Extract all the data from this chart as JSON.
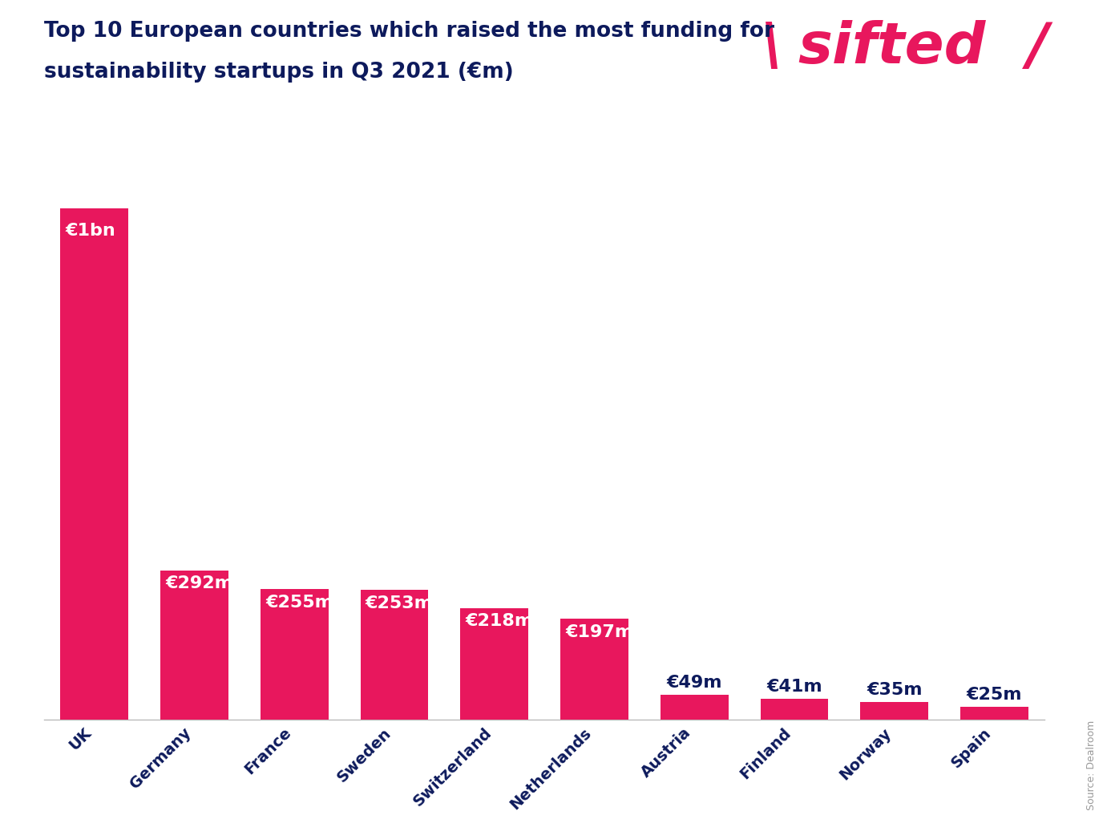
{
  "title_line1": "Top 10 European countries which raised the most funding for",
  "title_line2": "sustainability startups in Q3 2021 (€m)",
  "source": "Source: Dealroom",
  "categories": [
    "UK",
    "Germany",
    "France",
    "Sweden",
    "Switzerland",
    "Netherlands",
    "Austria",
    "Finland",
    "Norway",
    "Spain"
  ],
  "values": [
    1000,
    292,
    255,
    253,
    218,
    197,
    49,
    41,
    35,
    25
  ],
  "labels": [
    "€1bn",
    "€292m",
    "€255m",
    "€253m",
    "€218m",
    "€197m",
    "€49m",
    "€41m",
    "€35m",
    "€25m"
  ],
  "label_inside": [
    true,
    true,
    true,
    true,
    true,
    true,
    false,
    false,
    false,
    false
  ],
  "label_color_inside": "#ffffff",
  "label_color_outside": "#0d1a5c",
  "bar_color": "#e8175d",
  "background_color": "#ffffff",
  "grid_color": "#d0d0d0",
  "title_color": "#0d1a5c",
  "sifted_color": "#e8175d",
  "ylim_max": 1100,
  "title_fontsize": 19,
  "tick_label_fontsize": 14,
  "bar_label_fontsize": 14,
  "source_fontsize": 9
}
